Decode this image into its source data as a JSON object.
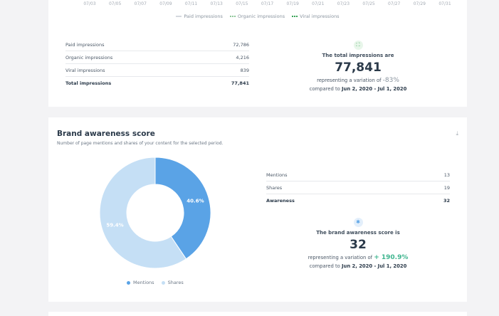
{
  "impressions": {
    "axis_ticks": [
      "07/03",
      "07/05",
      "07/07",
      "07/09",
      "07/11",
      "07/13",
      "07/15",
      "07/17",
      "07/19",
      "07/21",
      "07/23",
      "07/25",
      "07/27",
      "07/29",
      "07/31"
    ],
    "legend": [
      "Paid impressions",
      "Organic impressions",
      "Viral impressions"
    ],
    "rows": [
      {
        "label": "Paid impressions",
        "value": "72,786"
      },
      {
        "label": "Organic impressions",
        "value": "4,216"
      },
      {
        "label": "Viral impressions",
        "value": "839"
      }
    ],
    "total": {
      "label": "Total impressions",
      "value": "77,841"
    },
    "summary": {
      "icon": "expand-icon",
      "label": "The total impressions are",
      "value": "77,841",
      "variation_prefix": "representing a variation of",
      "variation": "-83%",
      "compared_prefix": "compared to",
      "compared_range": "Jun 2, 2020 - Jul 1, 2020"
    }
  },
  "brand": {
    "title": "Brand awareness score",
    "subtitle": "Number of page mentions and shares of your content for the selected period.",
    "download_icon": "download-icon",
    "chart_data": {
      "type": "pie",
      "categories": [
        "Mentions",
        "Shares"
      ],
      "values": [
        40.6,
        59.4
      ],
      "labels": [
        "40.6%",
        "59.4%"
      ],
      "colors": [
        "#5aa3e6",
        "#c5dff5"
      ],
      "legend_position": "bottom"
    },
    "rows": [
      {
        "label": "Mentions",
        "value": "13"
      },
      {
        "label": "Shares",
        "value": "19"
      }
    ],
    "total": {
      "label": "Awareness",
      "value": "32"
    },
    "summary": {
      "icon": "megaphone-icon",
      "label": "The brand awareness score is",
      "value": "32",
      "variation_prefix": "representing a variation of",
      "variation": "+ 190.9%",
      "compared_prefix": "compared to",
      "compared_range": "Jun 2, 2020 - Jul 1, 2020"
    }
  }
}
